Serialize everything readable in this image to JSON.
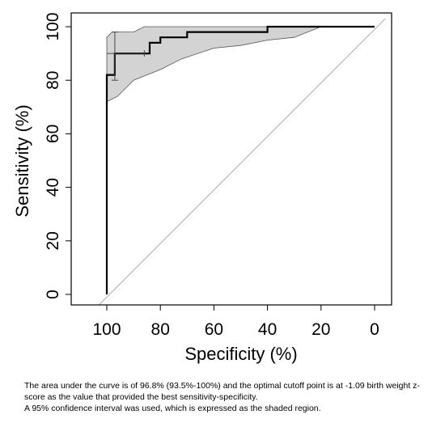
{
  "chart_data": {
    "type": "line",
    "title": "",
    "xlabel": "Specificity (%)",
    "ylabel": "Sensitivity (%)",
    "xlim": [
      100,
      0
    ],
    "ylim": [
      0,
      100
    ],
    "x_reversed": true,
    "x_ticks": [
      100,
      80,
      60,
      40,
      20,
      0
    ],
    "y_ticks": [
      0,
      20,
      40,
      60,
      80,
      100
    ],
    "grid": false,
    "legend": "none",
    "colors": {
      "curve": "#000000",
      "band_fill": "#d3d3d3",
      "band_stroke": "#555555",
      "diagonal": "#aaaaaa"
    },
    "series": [
      {
        "values": [
          [
            100,
            0
          ],
          [
            100,
            82
          ],
          [
            97,
            82
          ],
          [
            97,
            90
          ],
          [
            84,
            90
          ],
          [
            84,
            94
          ],
          [
            80,
            94
          ],
          [
            80,
            96
          ],
          [
            70,
            96
          ],
          [
            70,
            98
          ],
          [
            40,
            98
          ],
          [
            40,
            100
          ],
          [
            0,
            100
          ]
        ]
      }
    ],
    "ci_band": {
      "upper": [
        [
          100,
          72
        ],
        [
          100,
          96
        ],
        [
          98,
          98
        ],
        [
          90,
          98
        ],
        [
          86,
          100
        ],
        [
          0,
          100
        ]
      ],
      "lower": [
        [
          100,
          72
        ],
        [
          96,
          74
        ],
        [
          90,
          80
        ],
        [
          80,
          84
        ],
        [
          72,
          88
        ],
        [
          60,
          92
        ],
        [
          50,
          93
        ],
        [
          40,
          95
        ],
        [
          30,
          96
        ],
        [
          20,
          100
        ],
        [
          0,
          100
        ]
      ]
    },
    "error_bar": {
      "x": 97,
      "y": 90,
      "y_low": 80,
      "y_high": 98,
      "x_low": 100,
      "x_high": 86
    },
    "reference_line": [
      [
        103,
        -4
      ],
      [
        -4,
        103
      ]
    ]
  },
  "caption": {
    "line1": "The area under the curve is of 96.8% (93.5%-100%) and the optimal cutoff point is at -1.09 birth weight z-score as the value that provided the best sensitivity-specificity.",
    "line2": "A 95% confidence interval was used, which is expressed as the shaded region."
  }
}
